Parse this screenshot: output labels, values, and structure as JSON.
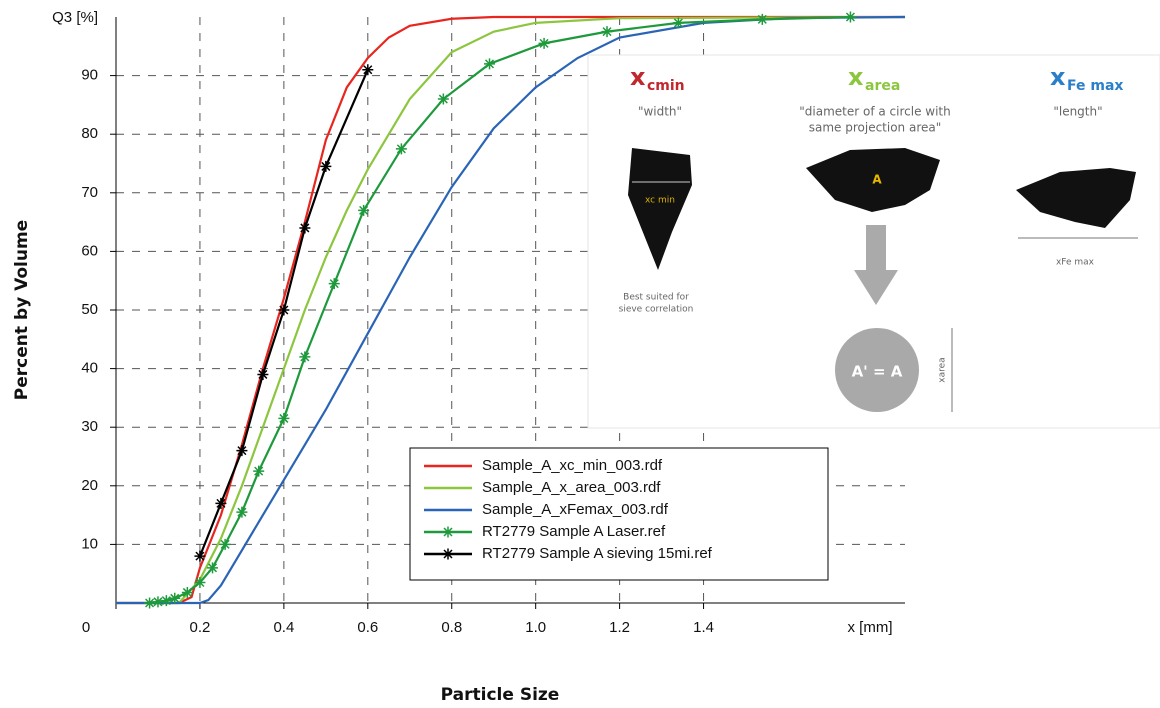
{
  "chart_data": {
    "type": "line",
    "y_title": "Percent by Volume",
    "x_title": "Particle Size",
    "y_unit_label": "Q3 [%]",
    "x_unit_label": "x [mm]",
    "xlim": [
      0,
      1.88
    ],
    "ylim": [
      0,
      100
    ],
    "grid": true,
    "xticks": [
      0,
      0.2,
      0.4,
      0.6,
      0.8,
      {
        "value": 1,
        "label": "1.0"
      },
      1.2,
      1.4
    ],
    "yticks": [
      10,
      20,
      30,
      40,
      50,
      60,
      70,
      80,
      90
    ],
    "series": [
      {
        "name": "Sample_A_xc_min_003.rdf",
        "color": "#e8261f",
        "x": [
          0,
          0.15,
          0.18,
          0.2,
          0.25,
          0.3,
          0.35,
          0.4,
          0.45,
          0.5,
          0.55,
          0.6,
          0.65,
          0.7,
          0.8,
          0.9,
          1.88
        ],
        "values": [
          0,
          0,
          1,
          6,
          15,
          27,
          40,
          52,
          65,
          79,
          88,
          93,
          96.5,
          98.5,
          99.7,
          100,
          100
        ]
      },
      {
        "name": "Sample_A_x_area_003.rdf",
        "color": "#8cc63f",
        "x": [
          0,
          0.15,
          0.2,
          0.25,
          0.3,
          0.35,
          0.4,
          0.45,
          0.5,
          0.55,
          0.6,
          0.65,
          0.7,
          0.8,
          0.9,
          1,
          1.2,
          1.88
        ],
        "values": [
          0,
          0,
          4,
          11,
          20,
          30,
          40,
          50,
          59,
          67,
          74,
          80,
          86,
          94,
          97.5,
          99,
          99.8,
          100
        ]
      },
      {
        "name": "Sample_A_xFemax_003.rdf",
        "color": "#2a64b6",
        "x": [
          0,
          0.2,
          0.22,
          0.25,
          0.3,
          0.35,
          0.4,
          0.45,
          0.5,
          0.6,
          0.7,
          0.8,
          0.9,
          1,
          1.1,
          1.2,
          1.4,
          1.6,
          1.88
        ],
        "values": [
          0,
          0,
          0.5,
          3,
          9,
          15,
          21,
          27,
          33,
          46,
          59,
          71,
          81,
          88,
          93,
          96.5,
          99,
          99.8,
          100
        ]
      },
      {
        "name": "RT2779 Sample A Laser.ref",
        "color": "#1e9a3c",
        "marker": "star",
        "x": [
          0.08,
          0.1,
          0.12,
          0.14,
          0.17,
          0.2,
          0.23,
          0.26,
          0.3,
          0.34,
          0.4,
          0.45,
          0.52,
          0.59,
          0.68,
          0.78,
          0.89,
          1.02,
          1.17,
          1.34,
          1.54,
          1.75
        ],
        "values": [
          0,
          0.2,
          0.4,
          0.8,
          1.8,
          3.5,
          6,
          10,
          15.5,
          22.5,
          31.5,
          42,
          54.5,
          67,
          77.5,
          86,
          92,
          95.5,
          97.5,
          99,
          99.6,
          100
        ]
      },
      {
        "name": "RT2779 Sample A sieving 15mi.ref",
        "color": "#000000",
        "marker": "star",
        "x": [
          0.2,
          0.25,
          0.3,
          0.35,
          0.4,
          0.45,
          0.5,
          0.6
        ],
        "values": [
          8,
          17,
          26,
          39,
          50,
          64,
          74.5,
          91
        ]
      }
    ]
  },
  "inset": {
    "xcmin": {
      "symbol": "x",
      "sub": "cmin",
      "caption": "\"width\"",
      "label": "xc min",
      "note": [
        "Best suited for",
        "sieve correlation"
      ]
    },
    "xarea": {
      "symbol": "x",
      "sub": "area",
      "caption": [
        "\"diameter of a circle with",
        "same projection area\""
      ],
      "shape_label": "A",
      "circle_label": "A' = A",
      "dim_label": "xarea"
    },
    "xfemax": {
      "symbol": "x",
      "sub": "Fe max",
      "caption": "\"length\"",
      "label": "xFe max"
    }
  }
}
